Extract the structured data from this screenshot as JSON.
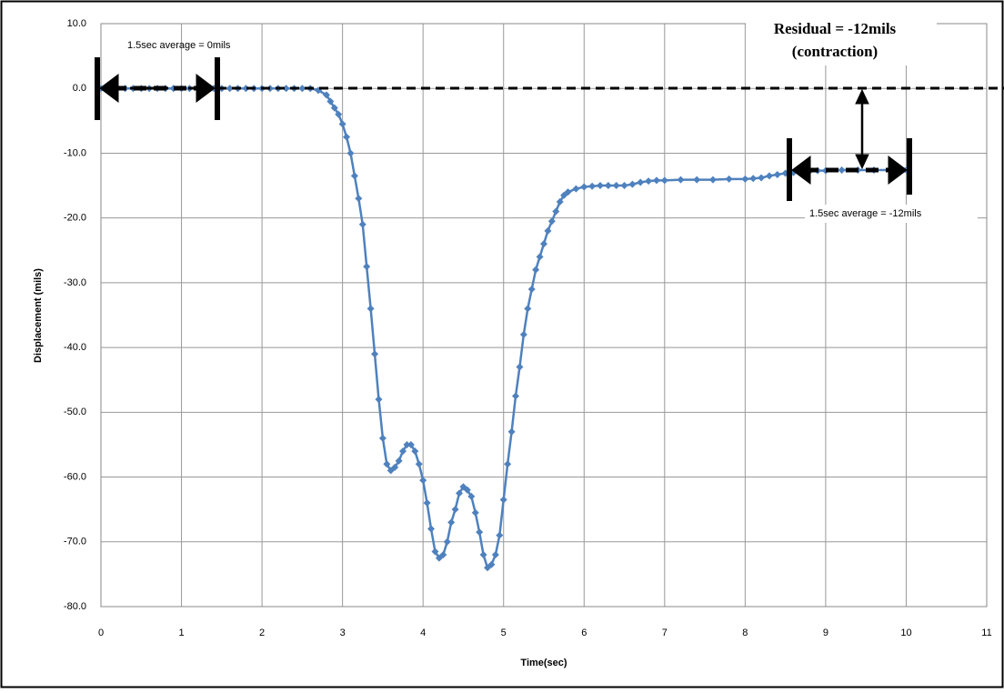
{
  "chart_data": {
    "type": "line",
    "x_label": "Time(sec)",
    "y_label": "Displacement (mils)",
    "annotations": [
      "1.5sec average = 0mils",
      "Residual = -12mils",
      "(contraction)",
      "1.5sec average = -12mils"
    ],
    "xlim": [
      0,
      11
    ],
    "ylim": [
      -80,
      10
    ],
    "grid": true,
    "xticks": [
      0,
      1,
      2,
      3,
      4,
      5,
      6,
      7,
      8,
      9,
      10,
      11
    ],
    "yticks": [
      {
        "value": 10,
        "label": "10.0"
      },
      {
        "value": 0,
        "label": "0.0"
      },
      {
        "value": -10,
        "label": "-10.0"
      },
      {
        "value": -20,
        "label": "-20.0"
      },
      {
        "value": -30,
        "label": "-30.0"
      },
      {
        "value": -40,
        "label": "-40.0"
      },
      {
        "value": -50,
        "label": "-50.0"
      },
      {
        "value": -60,
        "label": "-60.0"
      },
      {
        "value": -70,
        "label": "-70.0"
      },
      {
        "value": -80,
        "label": "-80.0"
      }
    ],
    "x": [
      0,
      0.1,
      0.2,
      0.3,
      0.4,
      0.5,
      0.6,
      0.7,
      0.8,
      0.9,
      1,
      1.1,
      1.2,
      1.3,
      1.4,
      1.5,
      1.6,
      1.7,
      1.8,
      1.9,
      2,
      2.1,
      2.2,
      2.3,
      2.4,
      2.5,
      2.6,
      2.7,
      2.8,
      2.85,
      2.9,
      2.95,
      3,
      3.05,
      3.1,
      3.15,
      3.2,
      3.25,
      3.3,
      3.35,
      3.4,
      3.45,
      3.5,
      3.55,
      3.6,
      3.65,
      3.7,
      3.75,
      3.8,
      3.85,
      3.9,
      3.95,
      4,
      4.05,
      4.1,
      4.15,
      4.2,
      4.25,
      4.3,
      4.35,
      4.4,
      4.45,
      4.5,
      4.55,
      4.6,
      4.65,
      4.7,
      4.75,
      4.8,
      4.85,
      4.9,
      4.95,
      5,
      5.05,
      5.1,
      5.15,
      5.2,
      5.25,
      5.3,
      5.35,
      5.4,
      5.45,
      5.5,
      5.55,
      5.6,
      5.65,
      5.7,
      5.75,
      5.8,
      5.9,
      6,
      6.1,
      6.2,
      6.3,
      6.4,
      6.5,
      6.6,
      6.7,
      6.8,
      6.9,
      7,
      7.2,
      7.4,
      7.6,
      7.8,
      8,
      8.1,
      8.2,
      8.3,
      8.4,
      8.5,
      8.6,
      8.7,
      8.8,
      8.9,
      9,
      9.2,
      9.4,
      9.6,
      9.8,
      10
    ],
    "series": [
      {
        "color": "#4f81bd",
        "values": [
          0,
          0,
          0,
          0,
          0,
          0,
          0,
          0,
          0,
          0,
          0,
          0,
          0,
          0,
          0,
          0,
          0,
          0,
          0,
          0,
          0,
          0,
          0,
          0,
          0,
          0,
          0,
          -0.3,
          -1,
          -2,
          -3,
          -4,
          -5.5,
          -7.5,
          -10,
          -13.5,
          -17,
          -21,
          -27.5,
          -34,
          -41,
          -48,
          -54,
          -58,
          -59,
          -58.5,
          -57.5,
          -56,
          -55,
          -55,
          -56,
          -58,
          -60.5,
          -64,
          -68,
          -71.5,
          -72.5,
          -72,
          -70,
          -67,
          -65,
          -62.5,
          -61.5,
          -62,
          -63,
          -65.5,
          -68.5,
          -72,
          -74,
          -73.5,
          -72,
          -69,
          -63.5,
          -58,
          -53,
          -47.5,
          -43,
          -38,
          -34,
          -31,
          -28,
          -26,
          -24,
          -22,
          -20.5,
          -19,
          -17.5,
          -16.5,
          -16,
          -15.5,
          -15.2,
          -15.1,
          -15,
          -15,
          -15,
          -15,
          -14.8,
          -14.5,
          -14.3,
          -14.2,
          -14.2,
          -14.1,
          -14.1,
          -14.1,
          -14,
          -14,
          -13.9,
          -13.8,
          -13.5,
          -13.3,
          -13.1,
          -13,
          -12.9,
          -12.8,
          -12.7,
          -12.7,
          -12.6,
          -12.6,
          -12.6,
          -12.6,
          -12.6
        ]
      }
    ]
  }
}
